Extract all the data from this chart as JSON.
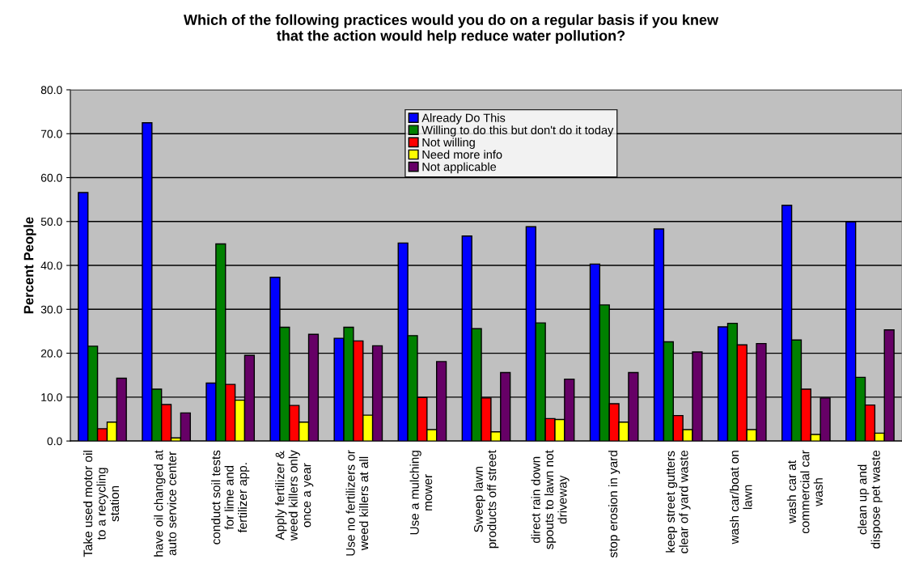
{
  "chart_data": {
    "type": "bar",
    "title": "Which of the following practices would you do on a regular basis if you knew\nthat the action would help reduce water pollution?",
    "ylabel": "Percent People",
    "categories": [
      "Take used motor oil\nto a recycling\nstation",
      "have oil changed at\nauto service center",
      "conduct soil tests\nfor lime and\nfertilizer app.",
      "Apply fertilizer &\nweed killers only\nonce a year",
      "Use no fertilizers or\nweed killers at all",
      "Use a mulching\nmower",
      "Sweep lawn\nproducts off street",
      "direct rain down\nspouts to lawn not\ndriveway",
      "stop erosion in yard",
      "keep street gutters\nclear of yard waste",
      "wash car/boat on\nlawn",
      "wash car at\ncommercial car\nwash",
      "clean up and\ndispose pet waste"
    ],
    "series": [
      {
        "name": "Already Do This",
        "color": "#0000ff",
        "values": [
          56.6,
          72.5,
          13.2,
          37.3,
          23.4,
          45.1,
          46.7,
          48.8,
          40.3,
          48.3,
          26.0,
          53.7,
          49.9
        ]
      },
      {
        "name": "Willing to do this but don't do it today",
        "color": "#008000",
        "values": [
          21.6,
          11.8,
          44.9,
          25.9,
          25.9,
          24.0,
          25.6,
          26.9,
          31.0,
          22.6,
          26.8,
          23.0,
          14.5
        ]
      },
      {
        "name": "Not willing",
        "color": "#ff0000",
        "values": [
          2.8,
          8.3,
          12.9,
          8.1,
          22.8,
          9.9,
          9.8,
          5.1,
          8.5,
          5.8,
          21.9,
          11.8,
          8.2
        ]
      },
      {
        "name": "Need more info",
        "color": "#ffff00",
        "values": [
          4.3,
          0.7,
          9.3,
          4.3,
          5.9,
          2.6,
          2.1,
          4.9,
          4.3,
          2.6,
          2.6,
          1.5,
          1.8
        ]
      },
      {
        "name": "Not applicable",
        "color": "#660066",
        "values": [
          14.3,
          6.4,
          19.5,
          24.3,
          21.7,
          18.1,
          15.6,
          14.1,
          15.6,
          20.3,
          22.2,
          9.8,
          25.3
        ]
      }
    ],
    "ylim": [
      0,
      80
    ],
    "yticks": [
      {
        "value": 0,
        "label": "0.0"
      },
      {
        "value": 10,
        "label": "10.0"
      },
      {
        "value": 20,
        "label": "20.0"
      },
      {
        "value": 30,
        "label": "30.0"
      },
      {
        "value": 40,
        "label": "40.0"
      },
      {
        "value": 50,
        "label": "50.0"
      },
      {
        "value": 60,
        "label": "60.0"
      },
      {
        "value": 70,
        "label": "70.0"
      },
      {
        "value": 80,
        "label": "80.0"
      }
    ],
    "grid": "y",
    "legend": "top"
  }
}
